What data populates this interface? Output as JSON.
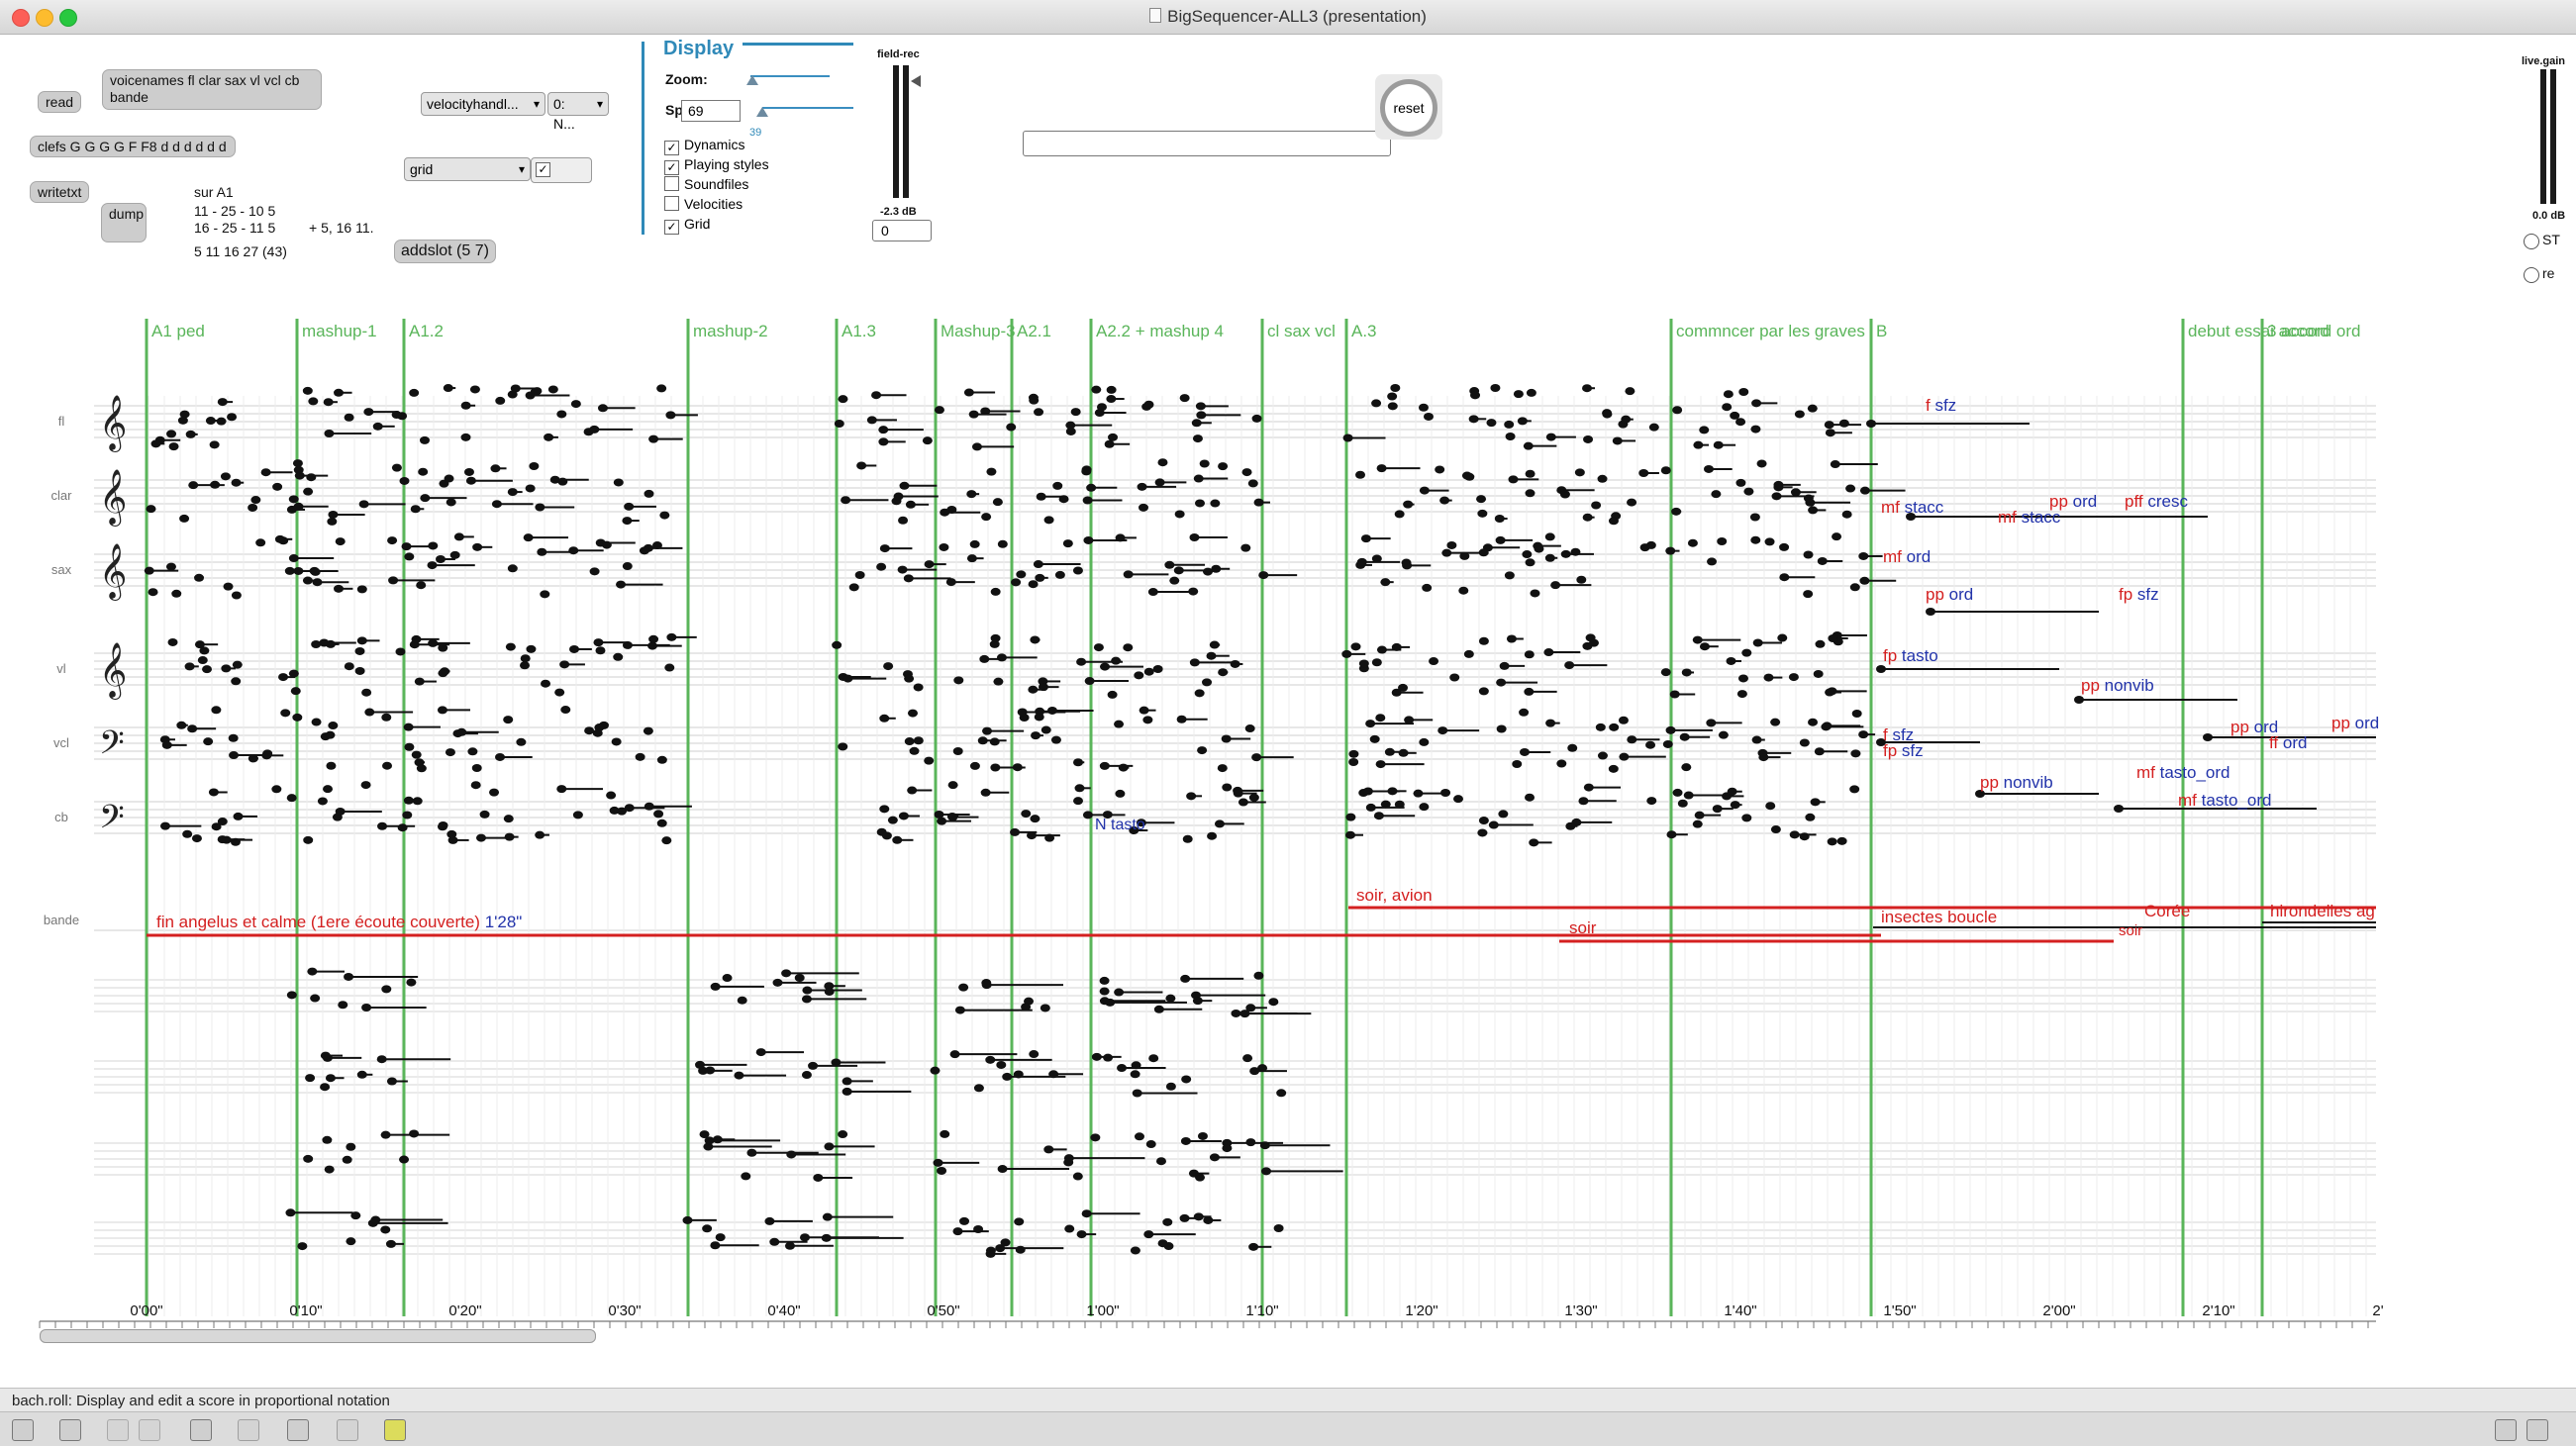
{
  "window": {
    "title": "BigSequencer-ALL3 (presentation)"
  },
  "controls": {
    "read": "read",
    "voicenames": "voicenames fl clar sax vl vcl cb bande",
    "clefs": "clefs G G G G F F8 d d d d d d",
    "writetxt": "writetxt",
    "dump": "dump",
    "sur_lines": [
      "sur A1",
      "11 - 25 - 10 5",
      "16 - 25 - 11 5",
      "5 11 16 27 (43)"
    ],
    "sur_extra": "+ 5, 16 11.",
    "velocity_menu": "velocityhandl...",
    "velocity_menu2": "0: N...",
    "grid_menu": "grid",
    "addslot": "addslot (5 7)",
    "reset": "reset"
  },
  "display": {
    "title": "Display",
    "zoom_label": "Zoom:",
    "spacing_label": "Sp",
    "spacing_value": "69",
    "zoom_small": "39",
    "options": [
      {
        "label": "Dynamics",
        "checked": true
      },
      {
        "label": "Playing styles",
        "checked": true
      },
      {
        "label": "Soundfiles",
        "checked": false
      },
      {
        "label": "Velocities",
        "checked": false
      },
      {
        "label": "Grid",
        "checked": true
      }
    ]
  },
  "meters": {
    "field_label": "field-rec",
    "field_db": "-2.3 dB",
    "field_value": "0",
    "live_label": "live.gain",
    "live_db": "0.0 dB",
    "radio1": "ST",
    "radio2": "re"
  },
  "score": {
    "staff_labels": [
      "fl",
      "clar",
      "sax",
      "vl",
      "vcl",
      "cb",
      "bande"
    ],
    "markers": [
      "A1 ped",
      "mashup-1",
      "A1.2",
      "mashup-2",
      "A1.3",
      "Mashup-3",
      "A2.1",
      "A2.2 + mashup 4",
      "cl sax vcl",
      "A.3",
      "commncer par les graves",
      "B",
      "debut essai accord",
      "3 accord ord"
    ],
    "time_labels": [
      "0'00\"",
      "0'10\"",
      "0'20\"",
      "0'30\"",
      "0'40\"",
      "0'50\"",
      "1'00\"",
      "1'10\"",
      "1'20\"",
      "1'30\"",
      "1'40\"",
      "1'50\"",
      "2'00\"",
      "2'10\"",
      "2'"
    ],
    "bande_notes": [
      "fin angelus et calme (1ere écoute couverte)",
      "1'28\"",
      "soir, avion",
      "soir",
      "insectes boucle",
      "Corée",
      "soir",
      "hirondelles ag"
    ],
    "dynamics": [
      {
        "dyn": "f",
        "style": "sfz"
      },
      {
        "dyn": "mf",
        "style": "stacc"
      },
      {
        "dyn": "mf",
        "style": "stacc"
      },
      {
        "dyn": "mf",
        "style": "ord"
      },
      {
        "dyn": "pp",
        "style": "ord"
      },
      {
        "dyn": "pp",
        "style": "ord"
      },
      {
        "dyn": "pff",
        "style": "cresc"
      },
      {
        "dyn": "fp",
        "style": "sfz"
      },
      {
        "dyn": "pp",
        "style": "nonvib"
      },
      {
        "dyn": "f",
        "style": "sfz"
      },
      {
        "dyn": "fp",
        "style": "sfz"
      },
      {
        "dyn": "pp",
        "style": "ord"
      },
      {
        "dyn": "ff",
        "style": "ord"
      },
      {
        "dyn": "pp",
        "style": "nonvib"
      },
      {
        "dyn": "mf",
        "style": "tasto_ord"
      },
      {
        "dyn": "mf",
        "style": "tasto_ord"
      },
      {
        "dyn": "pp",
        "style": "ord"
      },
      {
        "dyn": "fp",
        "style": "tasto"
      }
    ],
    "extra_label": "N tasto"
  },
  "status": {
    "text": "bach.roll: Display and edit a score in proportional notation"
  },
  "colors": {
    "marker": "#5ab55a",
    "dyn": "#d42020",
    "style": "#2233aa",
    "display": "#2f89b8"
  }
}
